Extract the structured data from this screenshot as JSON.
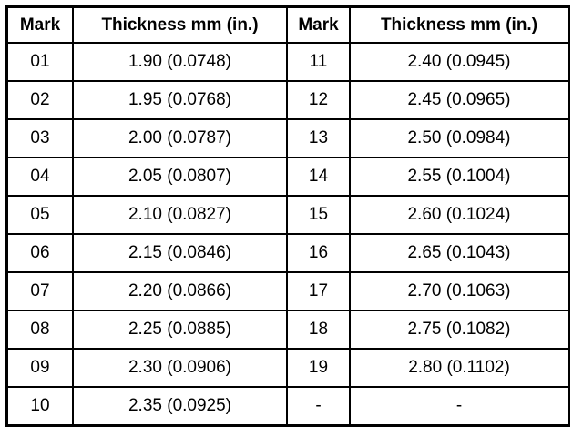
{
  "table": {
    "header": [
      "Mark",
      "Thickness mm (in.)",
      "Mark",
      "Thickness mm (in.)"
    ],
    "rows": [
      [
        "01",
        "1.90 (0.0748)",
        "11",
        "2.40 (0.0945)"
      ],
      [
        "02",
        "1.95 (0.0768)",
        "12",
        "2.45 (0.0965)"
      ],
      [
        "03",
        "2.00 (0.0787)",
        "13",
        "2.50 (0.0984)"
      ],
      [
        "04",
        "2.05 (0.0807)",
        "14",
        "2.55 (0.1004)"
      ],
      [
        "05",
        "2.10 (0.0827)",
        "15",
        "2.60 (0.1024)"
      ],
      [
        "06",
        "2.15 (0.0846)",
        "16",
        "2.65 (0.1043)"
      ],
      [
        "07",
        "2.20 (0.0866)",
        "17",
        "2.70 (0.1063)"
      ],
      [
        "08",
        "2.25 (0.0885)",
        "18",
        "2.75 (0.1082)"
      ],
      [
        "09",
        "2.30 (0.0906)",
        "19",
        "2.80 (0.1102)"
      ],
      [
        "10",
        "2.35 (0.0925)",
        "-",
        "-"
      ]
    ]
  }
}
